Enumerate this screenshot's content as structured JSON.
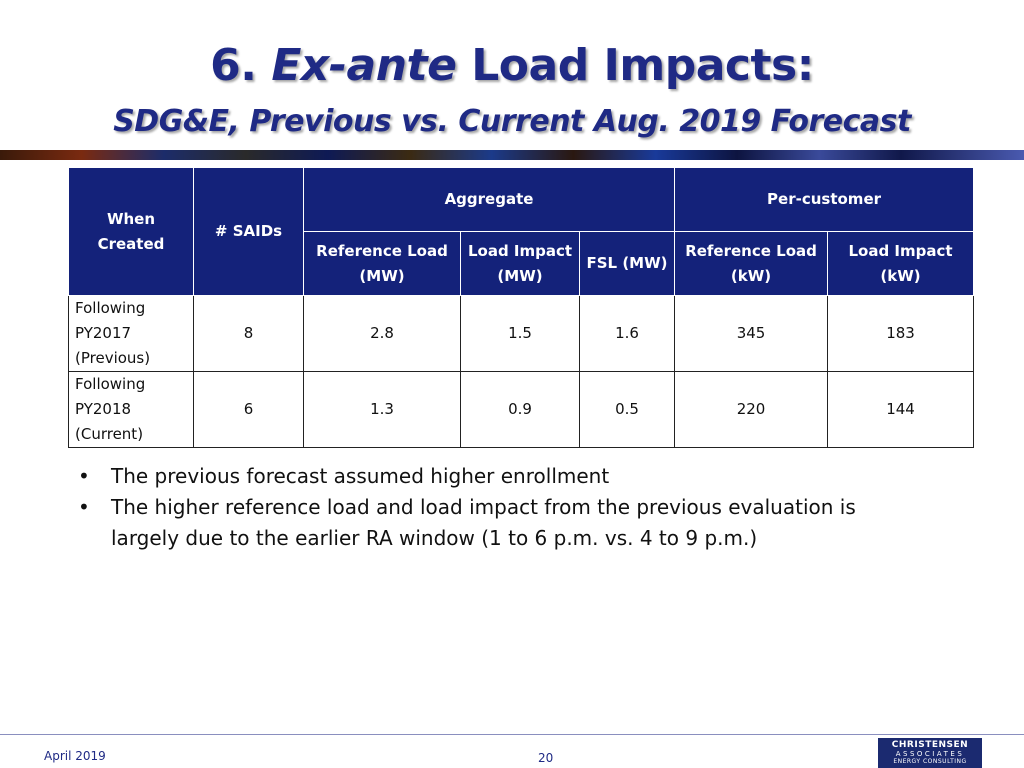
{
  "title": {
    "number": "6.",
    "emphasis": "Ex-ante",
    "rest": "Load Impacts:"
  },
  "subtitle": "SDG&E, Previous vs. Current Aug. 2019 Forecast",
  "table": {
    "header_when_created": "When Created",
    "header_saids": "# SAIDs",
    "group_aggregate": "Aggregate",
    "group_per_customer": "Per-customer",
    "sub_agg_ref_load": "Reference Load (MW)",
    "sub_agg_load_impact": "Load Impact (MW)",
    "sub_agg_fsl": "FSL (MW)",
    "sub_pc_ref_load": "Reference Load (kW)",
    "sub_pc_load_impact": "Load Impact (kW)",
    "rows": [
      {
        "when_created": "Following PY2017 (Previous)",
        "saids": "8",
        "agg_ref_load": "2.8",
        "agg_load_impact": "1.5",
        "agg_fsl": "1.6",
        "pc_ref_load": "345",
        "pc_load_impact": "183"
      },
      {
        "when_created": "Following PY2018 (Current)",
        "saids": "6",
        "agg_ref_load": "1.3",
        "agg_load_impact": "0.9",
        "agg_fsl": "0.5",
        "pc_ref_load": "220",
        "pc_load_impact": "144"
      }
    ]
  },
  "bullets": [
    "The previous forecast assumed higher enrollment",
    "The higher reference load and load impact from the previous evaluation is largely due to the earlier RA window (1 to 6 p.m. vs. 4 to 9 p.m.)"
  ],
  "footer": {
    "date": "April 2019",
    "page_number": "20",
    "logo_line1": "CHRISTENSEN",
    "logo_line2": "ASSOCIATES",
    "logo_line3": "ENERGY CONSULTING"
  },
  "colors": {
    "title": "#1f2a85",
    "table_header": "#14227a"
  }
}
